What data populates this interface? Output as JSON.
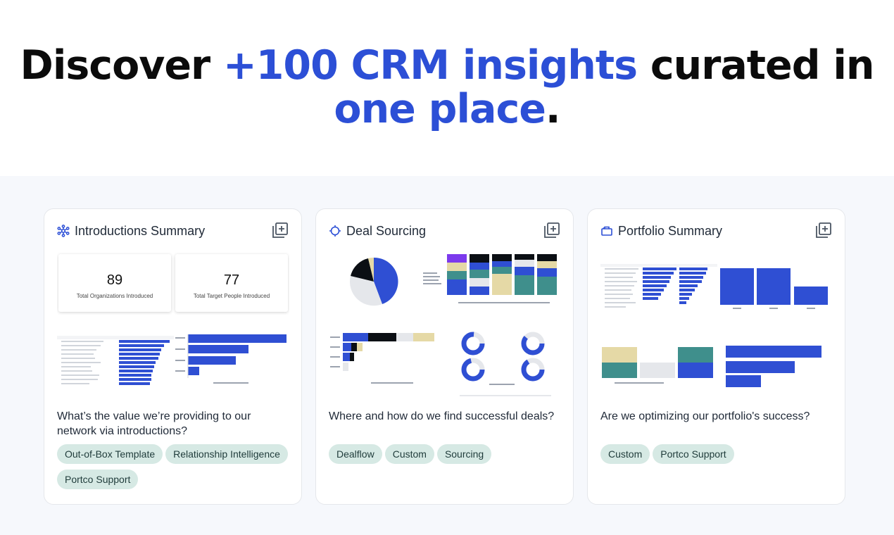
{
  "hero": {
    "title_prefix": "Discover ",
    "title_accent": "+100 CRM insights",
    "title_middle": " curated in",
    "title_accent2": "one place",
    "title_end": "."
  },
  "colors": {
    "accent": "#2c4fd6",
    "tag_bg": "#d6e9e4",
    "bar_blue": "#2f4fd3",
    "teal": "#3f8f8c",
    "sand": "#e5d9a6",
    "dark": "#0b0f14"
  },
  "cards": [
    {
      "icon": "network-icon",
      "title": "Introductions Summary",
      "question": "What’s the value we’re providing to our network via introductions?",
      "tags": [
        "Out-of-Box Template",
        "Relationship Intelligence",
        "Portco Support"
      ],
      "kpis": [
        {
          "value": "89",
          "label": "Total Organizations Introduced"
        },
        {
          "value": "77",
          "label": "Total Target People Introduced"
        }
      ]
    },
    {
      "icon": "target-icon",
      "title": "Deal Sourcing",
      "question": "Where and how do we find successful deals?",
      "tags": [
        "Dealflow",
        "Custom",
        "Sourcing"
      ]
    },
    {
      "icon": "briefcase-icon",
      "title": "Portfolio Summary",
      "question": "Are we optimizing our portfolio's success?",
      "tags": [
        "Custom",
        "Portco Support"
      ]
    }
  ]
}
